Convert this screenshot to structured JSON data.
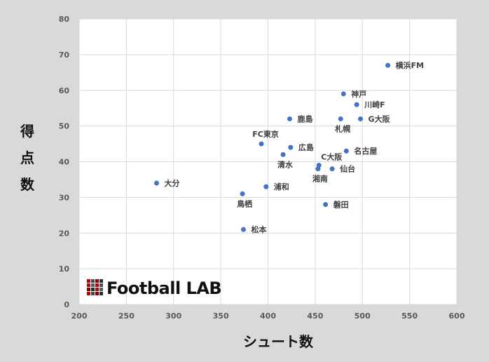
{
  "chart_data": {
    "type": "scatter",
    "xlabel": "シュート数",
    "ylabel": "得点数",
    "xlim": [
      200,
      600
    ],
    "ylim": [
      0,
      80
    ],
    "xticks": [
      200,
      250,
      300,
      350,
      400,
      450,
      500,
      550,
      600
    ],
    "yticks": [
      0,
      10,
      20,
      30,
      40,
      50,
      60,
      70,
      80
    ],
    "grid": true,
    "marker_color": "#4472c4",
    "points": [
      {
        "label": "横浜FM",
        "x": 527,
        "y": 67,
        "anchor": "right"
      },
      {
        "label": "神戸",
        "x": 480,
        "y": 59,
        "anchor": "right"
      },
      {
        "label": "川崎F",
        "x": 494,
        "y": 56,
        "anchor": "right"
      },
      {
        "label": "G大阪",
        "x": 498,
        "y": 52,
        "anchor": "right"
      },
      {
        "label": "札幌",
        "x": 477,
        "y": 52,
        "anchor": "below"
      },
      {
        "label": "鹿島",
        "x": 423,
        "y": 52,
        "anchor": "right"
      },
      {
        "label": "FC東京",
        "x": 393,
        "y": 45,
        "anchor": "above"
      },
      {
        "label": "広島",
        "x": 424,
        "y": 44,
        "anchor": "right"
      },
      {
        "label": "名古屋",
        "x": 483,
        "y": 43,
        "anchor": "right"
      },
      {
        "label": "清水",
        "x": 416,
        "y": 42,
        "anchor": "below"
      },
      {
        "label": "C大阪",
        "x": 454,
        "y": 39,
        "anchor": "right-up"
      },
      {
        "label": "湘南",
        "x": 453,
        "y": 38,
        "anchor": "below"
      },
      {
        "label": "仙台",
        "x": 468,
        "y": 38,
        "anchor": "right"
      },
      {
        "label": "大分",
        "x": 282,
        "y": 34,
        "anchor": "right"
      },
      {
        "label": "浦和",
        "x": 398,
        "y": 33,
        "anchor": "right"
      },
      {
        "label": "鳥栖",
        "x": 373,
        "y": 31,
        "anchor": "below"
      },
      {
        "label": "磐田",
        "x": 461,
        "y": 28,
        "anchor": "right"
      },
      {
        "label": "松本",
        "x": 374,
        "y": 21,
        "anchor": "right"
      }
    ]
  },
  "logo": {
    "text": "Football LAB"
  }
}
